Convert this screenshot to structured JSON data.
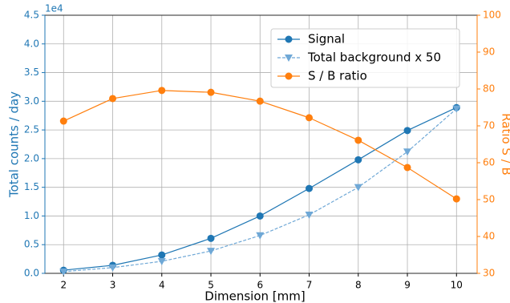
{
  "chart_data": {
    "type": "line",
    "xlabel": "Dimension [mm]",
    "ylabel": "Total counts / day",
    "y2label": "Ratio S / B",
    "y_offset_label": "1e4",
    "x": [
      2,
      3,
      4,
      5,
      6,
      7,
      8,
      9,
      10
    ],
    "series": [
      {
        "name": "Signal",
        "color": "#1f77b4",
        "marker": "circle",
        "linestyle": "solid",
        "axis": "y",
        "values": [
          0.055,
          0.14,
          0.32,
          0.61,
          1.0,
          1.48,
          1.98,
          2.49,
          2.89
        ]
      },
      {
        "name": "Total background x 50",
        "color": "#6fa8d6",
        "marker": "triangle-down",
        "linestyle": "dashed",
        "axis": "y",
        "values": [
          0.03,
          0.1,
          0.21,
          0.39,
          0.66,
          1.02,
          1.5,
          2.12,
          2.87
        ]
      },
      {
        "name": "S / B ratio",
        "color": "#ff7f0e",
        "marker": "circle",
        "linestyle": "solid",
        "axis": "y2",
        "values": [
          71.3,
          77.4,
          79.6,
          79.1,
          76.7,
          72.2,
          66.1,
          58.7,
          50.2
        ]
      }
    ],
    "xlim": [
      1.62,
      10.42
    ],
    "xticks": [
      2,
      3,
      4,
      5,
      6,
      7,
      8,
      9,
      10
    ],
    "ylim": [
      0,
      4.5
    ],
    "yticks": [
      {
        "value": 0,
        "label": "0.0"
      },
      0.5,
      {
        "value": 1,
        "label": "1.0"
      },
      1.5,
      {
        "value": 2,
        "label": "2.0"
      },
      2.5,
      {
        "value": 3,
        "label": "3.0"
      },
      3.5,
      {
        "value": 4,
        "label": "4.0"
      },
      4.5
    ],
    "y2lim": [
      30,
      100
    ],
    "y2ticks": [
      30,
      40,
      50,
      60,
      70,
      80,
      90,
      100
    ],
    "y_color": "#1f77b4",
    "y2_color": "#ff7f0e",
    "grid": true,
    "legend": "upper right"
  }
}
